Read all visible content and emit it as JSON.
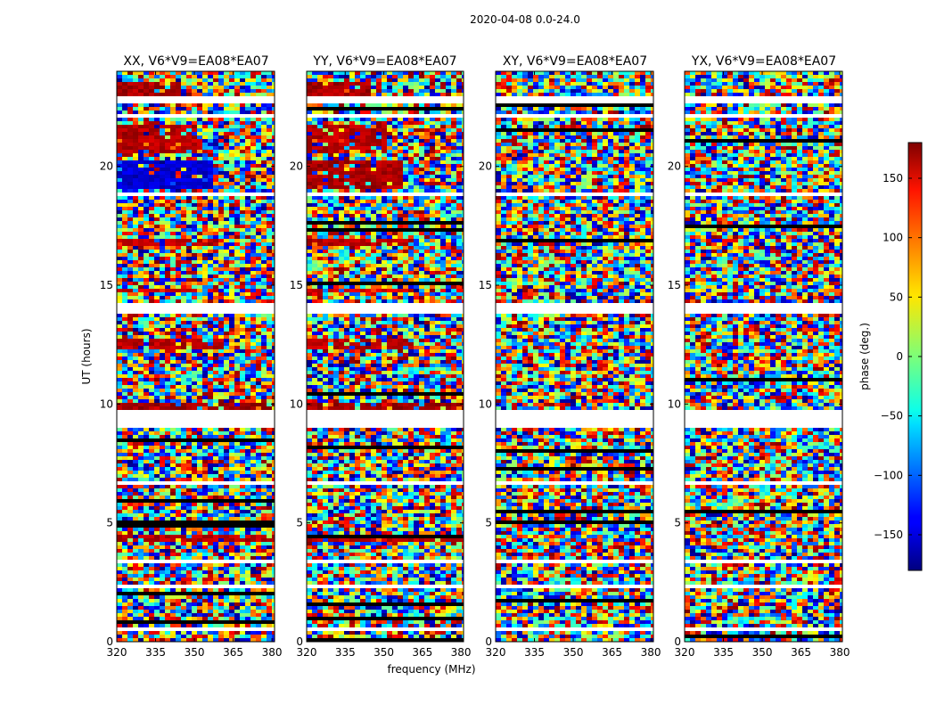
{
  "chart_data": {
    "type": "heatmap",
    "suptitle": "2020-04-08 0.0-24.0",
    "xlabel": "frequency (MHz)",
    "ylabel": "UT (hours)",
    "xlim": [
      320,
      381
    ],
    "ylim": [
      0,
      24
    ],
    "x_ticks": [
      "320",
      "335",
      "350",
      "365",
      "380"
    ],
    "y_ticks": [
      "0",
      "5",
      "10",
      "15",
      "20"
    ],
    "colormap": "jet",
    "panels": [
      {
        "title": "XX, V6*V9=EA08*EA07",
        "polarization": "XX"
      },
      {
        "title": "YY, V6*V9=EA08*EA07",
        "polarization": "YY"
      },
      {
        "title": "XY, V6*V9=EA08*EA07",
        "polarization": "XY"
      },
      {
        "title": "YX, V6*V9=EA08*EA07",
        "polarization": "YX"
      }
    ],
    "colorbar": {
      "label": "phase (deg.)",
      "range": [
        -180,
        180
      ],
      "ticks": [
        "150",
        "100",
        "50",
        "0",
        "−50",
        "−100",
        "−150"
      ],
      "tick_values": [
        150,
        100,
        50,
        0,
        -50,
        -100,
        -150
      ]
    },
    "flagged_bands_hours": [
      [
        0.45,
        0.55
      ],
      [
        1.0,
        1.05
      ],
      [
        2.3,
        2.4
      ],
      [
        2.55,
        2.6
      ],
      [
        3.35,
        3.4
      ],
      [
        5.5,
        5.55
      ],
      [
        6.6,
        6.7
      ],
      [
        9.05,
        9.75
      ],
      [
        11.5,
        11.55
      ],
      [
        13.8,
        14.2
      ],
      [
        18.8,
        18.95
      ],
      [
        22.05,
        22.15
      ],
      [
        22.6,
        22.9
      ],
      [
        23.2,
        23.3
      ]
    ],
    "coherent_features": [
      {
        "panels": [
          "XX",
          "YY"
        ],
        "ut_hours": [
          4.15,
          4.45
        ],
        "freq_mhz": [
          320,
          381
        ],
        "phase_deg": 160
      },
      {
        "panels": [
          "XX",
          "YY"
        ],
        "ut_hours": [
          9.8,
          10.0
        ],
        "freq_mhz": [
          320,
          381
        ],
        "phase_deg": 170
      },
      {
        "panels": [
          "XX",
          "YY"
        ],
        "ut_hours": [
          12.3,
          12.8
        ],
        "freq_mhz": [
          320,
          362
        ],
        "phase_deg": 160
      },
      {
        "panels": [
          "XX",
          "YY"
        ],
        "ut_hours": [
          14.7,
          14.9
        ],
        "freq_mhz": [
          320,
          360
        ],
        "phase_deg": 150
      },
      {
        "panels": [
          "XX",
          "YY"
        ],
        "ut_hours": [
          16.7,
          17.0
        ],
        "freq_mhz": [
          320,
          360
        ],
        "phase_deg": 160
      },
      {
        "panels": [
          "XX"
        ],
        "ut_hours": [
          19.0,
          20.2
        ],
        "freq_mhz": [
          320,
          357
        ],
        "phase_deg": -150
      },
      {
        "panels": [
          "YY"
        ],
        "ut_hours": [
          19.0,
          20.2
        ],
        "freq_mhz": [
          320,
          357
        ],
        "phase_deg": 165
      },
      {
        "panels": [
          "XX",
          "YY"
        ],
        "ut_hours": [
          20.5,
          21.8
        ],
        "freq_mhz": [
          320,
          352
        ],
        "phase_deg": 160
      },
      {
        "panels": [
          "XX",
          "YY"
        ],
        "ut_hours": [
          23.0,
          23.6
        ],
        "freq_mhz": [
          320,
          345
        ],
        "phase_deg": 165
      }
    ]
  }
}
